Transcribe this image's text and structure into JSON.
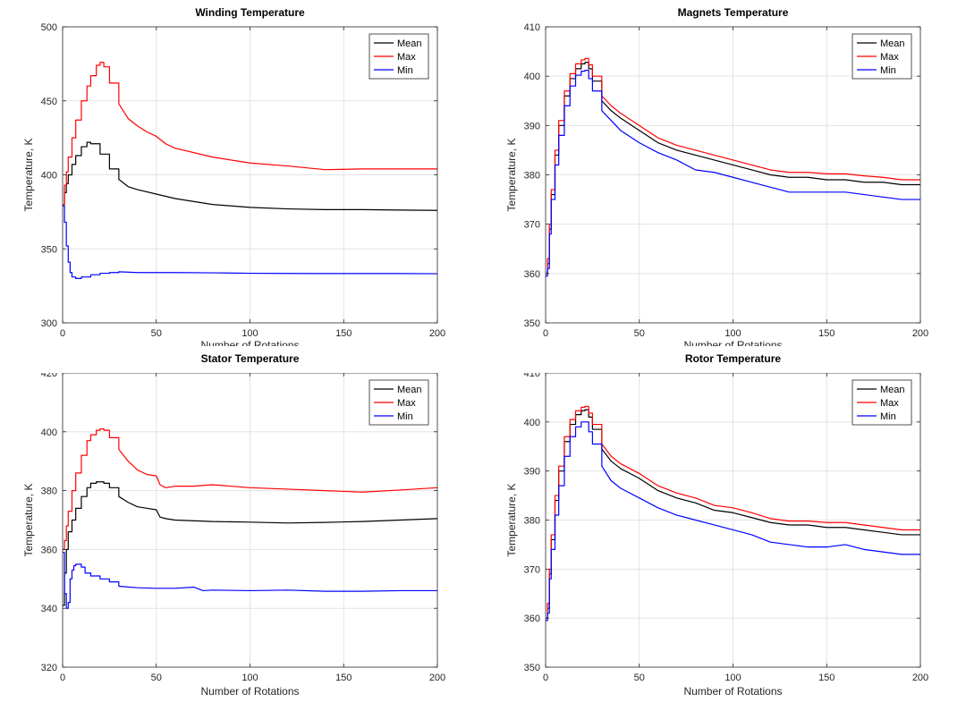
{
  "chart_data": [
    {
      "type": "line",
      "title": "Winding Temperature",
      "xlabel": "Number of Rotations",
      "ylabel": "Temperature, K",
      "xlim": [
        0,
        200
      ],
      "ylim": [
        300,
        500
      ],
      "xticks": [
        0,
        50,
        100,
        150,
        200
      ],
      "yticks": [
        300,
        350,
        400,
        450,
        500
      ],
      "grid": true,
      "legend": "top-right",
      "series": [
        {
          "name": "Mean",
          "color": "#000000",
          "x": [
            0,
            1,
            2,
            3,
            5,
            7,
            10,
            13,
            15,
            20,
            25,
            30,
            35,
            40,
            50,
            60,
            80,
            100,
            120,
            140,
            160,
            180,
            200
          ],
          "y": [
            380,
            388,
            394,
            400,
            407,
            413,
            419,
            422,
            421,
            414,
            404,
            397,
            392,
            390,
            387,
            384,
            380,
            378,
            377,
            376.5,
            376.5,
            376.2,
            376
          ]
        },
        {
          "name": "Max",
          "color": "#ff0000",
          "x": [
            0,
            1,
            2,
            3,
            5,
            7,
            10,
            13,
            15,
            18,
            20,
            22,
            25,
            30,
            35,
            40,
            45,
            50,
            55,
            60,
            80,
            100,
            120,
            140,
            160,
            180,
            200
          ],
          "y": [
            380,
            393,
            402,
            412,
            425,
            437,
            450,
            460,
            467,
            474,
            476,
            473,
            462,
            448,
            438,
            433,
            429,
            426,
            421,
            418,
            412,
            408,
            406,
            403.5,
            404,
            404,
            404
          ]
        },
        {
          "name": "Min",
          "color": "#0000ff",
          "x": [
            0,
            1,
            2,
            3,
            4,
            5,
            7,
            10,
            15,
            20,
            25,
            30,
            40,
            60,
            80,
            100,
            120,
            140,
            160,
            180,
            200
          ],
          "y": [
            379,
            368,
            352,
            341,
            334,
            331,
            330,
            331,
            332.5,
            333.5,
            334,
            334.5,
            334,
            334,
            333.8,
            333.5,
            333.4,
            333.3,
            333.3,
            333.3,
            333.2
          ]
        }
      ]
    },
    {
      "type": "line",
      "title": "Magnets Temperature",
      "xlabel": "Number of Rotations",
      "ylabel": "Temperature, K",
      "xlim": [
        0,
        200
      ],
      "ylim": [
        350,
        410
      ],
      "xticks": [
        0,
        50,
        100,
        150,
        200
      ],
      "yticks": [
        350,
        360,
        370,
        380,
        390,
        400,
        410
      ],
      "grid": true,
      "legend": "top-right",
      "series": [
        {
          "name": "Mean",
          "color": "#000000",
          "x": [
            0,
            1,
            2,
            3,
            5,
            7,
            10,
            13,
            16,
            19,
            21,
            23,
            25,
            30,
            35,
            40,
            50,
            60,
            70,
            80,
            90,
            100,
            110,
            120,
            130,
            140,
            150,
            160,
            170,
            180,
            190,
            200
          ],
          "y": [
            360,
            362,
            369,
            376,
            384,
            390,
            396,
            399.5,
            401.5,
            402.5,
            402.8,
            401.5,
            399,
            395,
            393,
            391.5,
            389,
            386.5,
            385,
            384,
            383,
            382,
            381,
            380,
            379.5,
            379.5,
            379,
            379,
            378.5,
            378.5,
            378,
            378
          ]
        },
        {
          "name": "Max",
          "color": "#ff0000",
          "x": [
            0,
            1,
            2,
            3,
            5,
            7,
            10,
            13,
            16,
            19,
            21,
            23,
            25,
            30,
            35,
            40,
            50,
            60,
            70,
            80,
            90,
            100,
            110,
            120,
            130,
            140,
            150,
            160,
            170,
            180,
            190,
            200
          ],
          "y": [
            360,
            363,
            370,
            377,
            385,
            391,
            397,
            400.5,
            402.5,
            403.3,
            403.6,
            402.3,
            400,
            396,
            394,
            392.5,
            390,
            387.5,
            386,
            385,
            384,
            383,
            382,
            381,
            380.5,
            380.5,
            380.2,
            380.2,
            379.8,
            379.5,
            379,
            379
          ]
        },
        {
          "name": "Min",
          "color": "#0000ff",
          "x": [
            0,
            1,
            2,
            3,
            5,
            7,
            10,
            13,
            16,
            19,
            21,
            23,
            25,
            30,
            35,
            40,
            50,
            60,
            70,
            80,
            90,
            100,
            110,
            120,
            130,
            140,
            150,
            160,
            170,
            180,
            190,
            200
          ],
          "y": [
            359.5,
            361,
            368,
            375,
            382,
            388,
            394,
            398,
            400.2,
            401,
            401.2,
            399.5,
            397,
            393,
            391,
            389,
            386.5,
            384.5,
            383,
            381,
            380.5,
            379.5,
            378.5,
            377.5,
            376.5,
            376.5,
            376.5,
            376.5,
            376,
            375.5,
            375,
            375
          ]
        }
      ]
    },
    {
      "type": "line",
      "title": "Stator Temperature",
      "xlabel": "Number of Rotations",
      "ylabel": "Temperature, K",
      "xlim": [
        0,
        200
      ],
      "ylim": [
        320,
        420
      ],
      "xticks": [
        0,
        50,
        100,
        150,
        200
      ],
      "yticks": [
        320,
        340,
        360,
        380,
        400,
        420
      ],
      "grid": true,
      "legend": "top-right",
      "series": [
        {
          "name": "Mean",
          "color": "#000000",
          "x": [
            0,
            1,
            2,
            3,
            5,
            7,
            10,
            13,
            15,
            18,
            20,
            22,
            25,
            30,
            35,
            40,
            45,
            50,
            52,
            55,
            60,
            80,
            100,
            120,
            140,
            160,
            180,
            200
          ],
          "y": [
            341,
            352,
            360,
            366,
            370,
            374,
            378,
            381,
            382.5,
            383,
            383,
            382.5,
            381,
            378,
            376,
            374.5,
            374,
            373.5,
            371,
            370.5,
            370,
            369.5,
            369.3,
            369,
            369.2,
            369.5,
            370,
            370.5
          ]
        },
        {
          "name": "Max",
          "color": "#ff0000",
          "x": [
            0,
            1,
            2,
            3,
            5,
            7,
            10,
            13,
            15,
            18,
            20,
            22,
            25,
            30,
            35,
            40,
            45,
            50,
            52,
            55,
            60,
            70,
            80,
            100,
            120,
            140,
            160,
            180,
            200
          ],
          "y": [
            360,
            363,
            368,
            373,
            380,
            386,
            392,
            397,
            399,
            400.5,
            401,
            400.5,
            398,
            394,
            390,
            387,
            385.5,
            385,
            382,
            381,
            381.5,
            381.5,
            382,
            381,
            380.5,
            380,
            379.5,
            380.2,
            381
          ]
        },
        {
          "name": "Min",
          "color": "#0000ff",
          "x": [
            0,
            1,
            2,
            3,
            4,
            5,
            6,
            7,
            8,
            10,
            12,
            15,
            20,
            25,
            30,
            40,
            50,
            60,
            70,
            75,
            80,
            100,
            120,
            140,
            160,
            180,
            200
          ],
          "y": [
            359,
            345,
            340,
            342,
            350,
            353,
            354.5,
            355,
            355,
            354,
            352,
            351,
            350,
            349,
            347.5,
            347,
            346.8,
            346.8,
            347.2,
            346,
            346.2,
            346,
            346.2,
            345.8,
            345.8,
            346,
            346
          ]
        }
      ]
    },
    {
      "type": "line",
      "title": "Rotor Temperature",
      "xlabel": "Number of Rotations",
      "ylabel": "Temperature, K",
      "xlim": [
        0,
        200
      ],
      "ylim": [
        350,
        410
      ],
      "xticks": [
        0,
        50,
        100,
        150,
        200
      ],
      "yticks": [
        350,
        360,
        370,
        380,
        390,
        400,
        410
      ],
      "grid": true,
      "legend": "top-right",
      "series": [
        {
          "name": "Mean",
          "color": "#000000",
          "x": [
            0,
            1,
            2,
            3,
            5,
            7,
            10,
            13,
            16,
            19,
            21,
            23,
            25,
            30,
            35,
            40,
            50,
            60,
            70,
            80,
            90,
            100,
            110,
            120,
            130,
            140,
            150,
            160,
            170,
            180,
            190,
            200
          ],
          "y": [
            360,
            362,
            369,
            376,
            384,
            390,
            396,
            399.5,
            401.5,
            402.3,
            402.5,
            401,
            398.5,
            394.5,
            392,
            390.5,
            388.5,
            386,
            384.5,
            383.5,
            382,
            381.5,
            380.5,
            379.5,
            379,
            379,
            378.5,
            378.5,
            378,
            377.5,
            377,
            377
          ]
        },
        {
          "name": "Max",
          "color": "#ff0000",
          "x": [
            0,
            1,
            2,
            3,
            5,
            7,
            10,
            13,
            16,
            19,
            21,
            23,
            25,
            30,
            35,
            40,
            50,
            60,
            70,
            80,
            90,
            100,
            110,
            120,
            130,
            140,
            150,
            160,
            170,
            180,
            190,
            200
          ],
          "y": [
            360,
            363,
            370,
            377,
            385,
            391,
            397,
            400.5,
            402.3,
            403,
            403.2,
            401.8,
            399.5,
            395.5,
            393,
            391.5,
            389.5,
            387,
            385.5,
            384.5,
            383,
            382.5,
            381.5,
            380.3,
            379.8,
            379.8,
            379.5,
            379.5,
            379,
            378.5,
            378,
            378
          ]
        },
        {
          "name": "Min",
          "color": "#0000ff",
          "x": [
            0,
            1,
            2,
            3,
            5,
            7,
            10,
            13,
            16,
            19,
            21,
            23,
            25,
            30,
            35,
            40,
            50,
            60,
            70,
            80,
            90,
            100,
            110,
            120,
            130,
            140,
            150,
            160,
            170,
            180,
            190,
            200
          ],
          "y": [
            359.5,
            361,
            368,
            374,
            381,
            387,
            393,
            397,
            399,
            400,
            400,
            398,
            395.5,
            391,
            388,
            386.5,
            384.5,
            382.5,
            381,
            380,
            379,
            378,
            377,
            375.5,
            375,
            374.5,
            374.5,
            375,
            374,
            373.5,
            373,
            373
          ]
        }
      ]
    }
  ]
}
